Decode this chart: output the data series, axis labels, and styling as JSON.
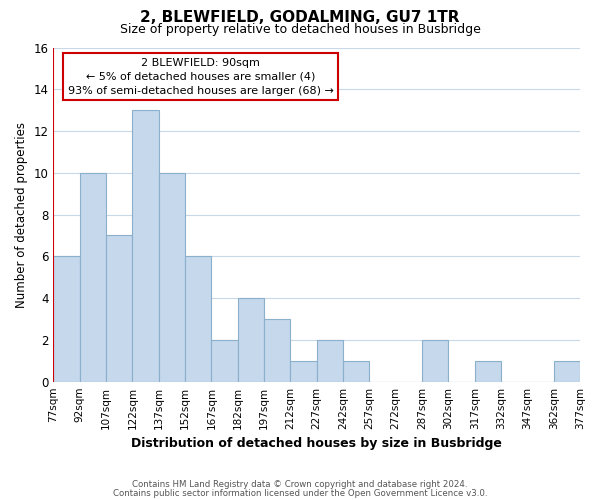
{
  "title": "2, BLEWFIELD, GODALMING, GU7 1TR",
  "subtitle": "Size of property relative to detached houses in Busbridge",
  "xlabel": "Distribution of detached houses by size in Busbridge",
  "ylabel": "Number of detached properties",
  "bin_labels": [
    "77sqm",
    "92sqm",
    "107sqm",
    "122sqm",
    "137sqm",
    "152sqm",
    "167sqm",
    "182sqm",
    "197sqm",
    "212sqm",
    "227sqm",
    "242sqm",
    "257sqm",
    "272sqm",
    "287sqm",
    "302sqm",
    "317sqm",
    "332sqm",
    "347sqm",
    "362sqm",
    "377sqm"
  ],
  "values": [
    6,
    10,
    7,
    13,
    10,
    6,
    2,
    4,
    3,
    1,
    2,
    1,
    0,
    0,
    2,
    0,
    1,
    0,
    0,
    1
  ],
  "bar_color": "#c5d8ec",
  "bar_edge_color": "#8ab0cc",
  "highlight_color": "#cc0000",
  "annotation_title": "2 BLEWFIELD: 90sqm",
  "annotation_line1": "← 5% of detached houses are smaller (4)",
  "annotation_line2": "93% of semi-detached houses are larger (68) →",
  "annotation_box_edge": "#cc0000",
  "ylim": [
    0,
    16
  ],
  "yticks": [
    0,
    2,
    4,
    6,
    8,
    10,
    12,
    14,
    16
  ],
  "footer1": "Contains HM Land Registry data © Crown copyright and database right 2024.",
  "footer2": "Contains public sector information licensed under the Open Government Licence v3.0.",
  "bg_color": "#ffffff",
  "grid_color": "#c8d8e8"
}
